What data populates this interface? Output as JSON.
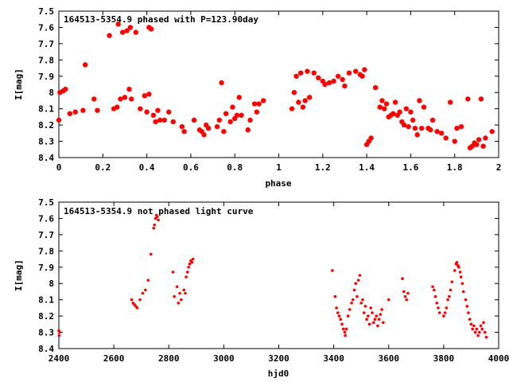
{
  "colors": {
    "points": "#ff0000",
    "axes": "#000000",
    "background": "#ffffff"
  },
  "chart_data": [
    {
      "type": "scatter",
      "title": "164513-5354.9 phased with P=123.90day",
      "xlabel": "phase",
      "ylabel": "I[mag]",
      "xlim": [
        0,
        2
      ],
      "ylim": [
        8.4,
        7.5
      ],
      "y_inverted": true,
      "grid": false,
      "marker": "filled circle",
      "xticks": [
        "0",
        "0.2",
        "0.4",
        "0.6",
        "0.8",
        "1",
        "1.2",
        "1.4",
        "1.6",
        "1.8",
        "2"
      ],
      "xtick_values": [
        0,
        0.2,
        0.4,
        0.6,
        0.8,
        1.0,
        1.2,
        1.4,
        1.6,
        1.8,
        2.0
      ],
      "yticks": [
        "7.5",
        "7.6",
        "7.7",
        "7.8",
        "7.9",
        "8",
        "8.1",
        "8.2",
        "8.3",
        "8.4"
      ],
      "ytick_values": [
        7.5,
        7.6,
        7.7,
        7.8,
        7.9,
        8.0,
        8.1,
        8.2,
        8.3,
        8.4
      ],
      "x": [
        0.0,
        0.005,
        0.02,
        0.03,
        0.05,
        0.075,
        0.11,
        0.12,
        0.16,
        0.175,
        0.23,
        0.25,
        0.265,
        0.27,
        0.28,
        0.29,
        0.3,
        0.31,
        0.32,
        0.325,
        0.33,
        0.35,
        0.37,
        0.39,
        0.4,
        0.41,
        0.41,
        0.42,
        0.43,
        0.44,
        0.45,
        0.46,
        0.48,
        0.5,
        0.52,
        0.56,
        0.57,
        0.615,
        0.64,
        0.65,
        0.66,
        0.67,
        0.68,
        0.72,
        0.73,
        0.74,
        0.75,
        0.76,
        0.78,
        0.79,
        0.8,
        0.81,
        0.82,
        0.83,
        0.86,
        0.87,
        0.89,
        0.9,
        0.91,
        0.93,
        1.06,
        1.07,
        1.08,
        1.09,
        1.1,
        1.11,
        1.12,
        1.13,
        1.14,
        1.16,
        1.18,
        1.2,
        1.21,
        1.23,
        1.25,
        1.27,
        1.29,
        1.3,
        1.32,
        1.35,
        1.37,
        1.38,
        1.39,
        1.4,
        1.41,
        1.42,
        1.44,
        1.46,
        1.47,
        1.48,
        1.49,
        1.5,
        1.51,
        1.52,
        1.53,
        1.54,
        1.55,
        1.56,
        1.57,
        1.58,
        1.59,
        1.6,
        1.61,
        1.62,
        1.63,
        1.64,
        1.65,
        1.66,
        1.68,
        1.69,
        1.7,
        1.72,
        1.74,
        1.76,
        1.78,
        1.8,
        1.81,
        1.83,
        1.86,
        1.87,
        1.88,
        1.89,
        1.9,
        1.91,
        1.92,
        1.93,
        1.94,
        1.97
      ],
      "y": [
        8.17,
        8.0,
        7.99,
        7.98,
        8.13,
        8.12,
        8.11,
        7.83,
        8.04,
        8.11,
        7.65,
        8.1,
        8.09,
        7.58,
        8.04,
        7.63,
        8.03,
        7.62,
        7.98,
        7.6,
        8.04,
        7.63,
        8.1,
        8.02,
        8.12,
        7.6,
        8.01,
        7.61,
        8.14,
        8.18,
        8.11,
        8.17,
        8.17,
        8.12,
        8.18,
        8.21,
        8.24,
        8.17,
        8.23,
        8.24,
        8.26,
        8.2,
        8.22,
        8.21,
        8.17,
        7.94,
        8.24,
        8.13,
        8.18,
        8.09,
        8.16,
        8.14,
        8.03,
        8.14,
        8.23,
        8.17,
        8.07,
        8.12,
        8.07,
        8.05,
        8.1,
        8.0,
        7.9,
        8.06,
        7.88,
        8.09,
        8.05,
        7.87,
        8.03,
        7.88,
        7.91,
        7.93,
        7.95,
        7.94,
        7.93,
        7.9,
        7.92,
        7.96,
        7.88,
        7.87,
        7.89,
        7.9,
        7.86,
        8.32,
        8.3,
        8.28,
        7.97,
        8.09,
        8.05,
        8.1,
        8.07,
        8.15,
        8.14,
        8.13,
        8.06,
        8.14,
        8.12,
        8.18,
        8.2,
        8.1,
        8.21,
        8.12,
        8.17,
        8.22,
        8.26,
        8.05,
        8.22,
        8.09,
        8.22,
        8.23,
        8.17,
        8.24,
        8.25,
        8.28,
        8.06,
        8.3,
        8.22,
        8.21,
        8.04,
        8.34,
        8.33,
        8.31,
        8.32,
        8.29,
        8.04,
        8.33,
        8.28,
        8.24
      ]
    },
    {
      "type": "scatter",
      "title": "164513-5354.9 not phased light curve",
      "xlabel": "hjd0",
      "ylabel": "I[mag]",
      "xlim": [
        2400,
        4000
      ],
      "ylim": [
        8.4,
        7.5
      ],
      "y_inverted": true,
      "grid": false,
      "marker": "small filled circle",
      "xticks": [
        "2400",
        "2600",
        "2800",
        "3000",
        "3200",
        "3400",
        "3600",
        "3800",
        "4000"
      ],
      "xtick_values": [
        2400,
        2600,
        2800,
        3000,
        3200,
        3400,
        3600,
        3800,
        4000
      ],
      "yticks": [
        "7.5",
        "7.6",
        "7.7",
        "7.8",
        "7.9",
        "8",
        "8.1",
        "8.2",
        "8.3",
        "8.4"
      ],
      "ytick_values": [
        7.5,
        7.6,
        7.7,
        7.8,
        7.9,
        8.0,
        8.1,
        8.2,
        8.3,
        8.4
      ],
      "x": [
        2400,
        2401,
        2403,
        2665,
        2670,
        2675,
        2680,
        2685,
        2695,
        2705,
        2715,
        2725,
        2735,
        2745,
        2748,
        2752,
        2755,
        2758,
        2762,
        2815,
        2820,
        2830,
        2835,
        2840,
        2845,
        2855,
        2860,
        2863,
        2868,
        2872,
        2876,
        2880,
        2884,
        2888,
        3395,
        3405,
        3410,
        3415,
        3420,
        3425,
        3430,
        3435,
        3440,
        3442,
        3446,
        3452,
        3458,
        3465,
        3470,
        3475,
        3480,
        3485,
        3490,
        3495,
        3500,
        3505,
        3510,
        3515,
        3520,
        3525,
        3530,
        3535,
        3540,
        3545,
        3550,
        3555,
        3560,
        3565,
        3570,
        3575,
        3580,
        3600,
        3650,
        3655,
        3660,
        3665,
        3670,
        3760,
        3765,
        3770,
        3775,
        3780,
        3785,
        3800,
        3805,
        3810,
        3815,
        3820,
        3825,
        3830,
        3840,
        3845,
        3848,
        3852,
        3855,
        3860,
        3863,
        3868,
        3872,
        3880,
        3885,
        3890,
        3895,
        3900,
        3905,
        3910,
        3915,
        3920,
        3925,
        3930,
        3935,
        3940,
        3945,
        3950,
        3955
      ],
      "y": [
        8.29,
        8.32,
        8.3,
        8.1,
        8.12,
        8.13,
        8.14,
        8.15,
        8.1,
        8.06,
        8.04,
        7.98,
        7.82,
        7.66,
        7.64,
        7.6,
        7.58,
        7.59,
        7.61,
        7.93,
        8.08,
        8.02,
        8.12,
        8.06,
        8.1,
        8.04,
        8.06,
        7.96,
        7.93,
        7.9,
        7.88,
        7.86,
        7.87,
        7.85,
        7.92,
        8.08,
        8.15,
        8.18,
        8.2,
        8.22,
        8.25,
        8.28,
        8.3,
        8.32,
        8.28,
        8.2,
        8.16,
        8.12,
        8.1,
        8.04,
        8.0,
        8.08,
        7.98,
        7.95,
        8.12,
        8.1,
        8.18,
        8.14,
        8.22,
        8.2,
        8.25,
        8.15,
        8.18,
        8.24,
        8.22,
        8.2,
        8.26,
        8.22,
        8.19,
        8.16,
        8.24,
        8.1,
        7.97,
        8.05,
        8.08,
        8.1,
        8.06,
        8.02,
        8.04,
        8.08,
        8.12,
        8.15,
        8.18,
        8.2,
        8.18,
        8.15,
        8.1,
        8.08,
        8.04,
        7.99,
        7.92,
        7.88,
        7.87,
        7.89,
        7.9,
        7.93,
        7.96,
        8.0,
        8.05,
        8.1,
        8.14,
        8.18,
        8.22,
        8.25,
        8.28,
        8.26,
        8.3,
        8.28,
        8.32,
        8.3,
        8.26,
        8.28,
        8.24,
        8.3,
        8.33
      ]
    }
  ]
}
